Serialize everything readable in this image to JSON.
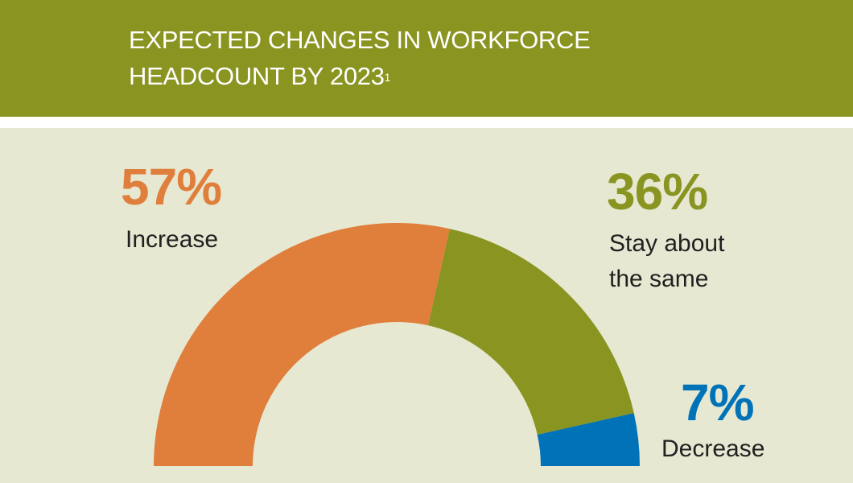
{
  "header": {
    "title_line1": "EXPECTED CHANGES IN WORKFORCE",
    "title_line2": "HEADCOUNT BY 2023",
    "footnote_marker": "1"
  },
  "colors": {
    "header_bg": "#899421",
    "page_bg": "#e6e8d2",
    "increase": "#e07e3c",
    "same": "#899421",
    "decrease": "#0073b8"
  },
  "chart_data": {
    "type": "pie",
    "variant": "half-donut",
    "title": "Expected changes in workforce headcount by 2023",
    "categories": [
      "Increase",
      "Stay about the same",
      "Decrease"
    ],
    "values": [
      57,
      36,
      7
    ],
    "unit": "%",
    "labels": [
      {
        "value": "57%",
        "text": "Increase",
        "color": "#e07e3c"
      },
      {
        "value": "36%",
        "text": "Stay about the same",
        "color": "#899421"
      },
      {
        "value": "7%",
        "text": "Decrease",
        "color": "#0073b8"
      }
    ]
  },
  "labels": {
    "increase_pct": "57%",
    "increase_text": "Increase",
    "same_pct": "36%",
    "same_text_line1": "Stay about",
    "same_text_line2": "the same",
    "decrease_pct": "7%",
    "decrease_text": "Decrease"
  }
}
